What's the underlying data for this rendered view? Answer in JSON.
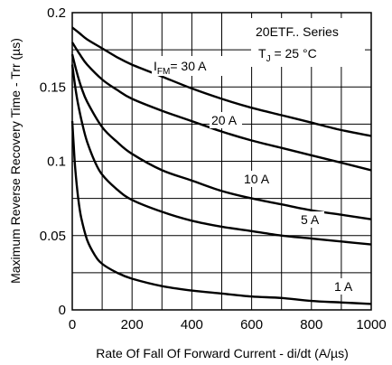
{
  "chart_data": {
    "type": "line",
    "title": "",
    "xlabel": "Rate Of Fall Of Forward Current - di/dt (A/µs)",
    "ylabel": "Maximum Reverse Recovery Time - Trr (µs)",
    "xlim": [
      0,
      1000
    ],
    "ylim": [
      0,
      0.2
    ],
    "x_ticks": [
      0,
      200,
      400,
      600,
      800,
      1000
    ],
    "x_tick_labels": [
      "0",
      "200",
      "400",
      "600",
      "800",
      "1000"
    ],
    "y_ticks": [
      0,
      0.05,
      0.1,
      0.15,
      0.2
    ],
    "y_tick_labels": [
      "0",
      "0.05",
      "0.1",
      "0.15",
      "0.2"
    ],
    "grid": true,
    "grid_x": [
      0,
      100,
      200,
      300,
      400,
      500,
      600,
      700,
      800,
      900,
      1000
    ],
    "grid_y": [
      0,
      0.025,
      0.05,
      0.075,
      0.1,
      0.125,
      0.15,
      0.175,
      0.2
    ],
    "legend_box": {
      "line1": "20ETF.. Series",
      "tj_main": "T",
      "tj_sub": "J",
      "tj_rest": " = 25 °C"
    },
    "series": [
      {
        "name": "30 A",
        "x": [
          0,
          25,
          50,
          100,
          150,
          200,
          300,
          400,
          500,
          600,
          700,
          800,
          900,
          1000
        ],
        "y": [
          0.19,
          0.186,
          0.182,
          0.176,
          0.17,
          0.165,
          0.157,
          0.149,
          0.142,
          0.136,
          0.131,
          0.126,
          0.121,
          0.117
        ]
      },
      {
        "name": "20 A",
        "x": [
          0,
          25,
          50,
          100,
          150,
          200,
          300,
          400,
          500,
          600,
          700,
          800,
          900,
          1000
        ],
        "y": [
          0.18,
          0.172,
          0.165,
          0.155,
          0.148,
          0.142,
          0.134,
          0.127,
          0.12,
          0.114,
          0.109,
          0.104,
          0.099,
          0.094
        ]
      },
      {
        "name": "10 A",
        "x": [
          0,
          15,
          30,
          50,
          100,
          150,
          200,
          300,
          400,
          500,
          600,
          700,
          800,
          900,
          1000
        ],
        "y": [
          0.172,
          0.16,
          0.15,
          0.14,
          0.123,
          0.113,
          0.105,
          0.094,
          0.087,
          0.08,
          0.075,
          0.071,
          0.067,
          0.064,
          0.061
        ]
      },
      {
        "name": "5 A",
        "x": [
          0,
          10,
          20,
          35,
          50,
          75,
          100,
          150,
          200,
          300,
          400,
          500,
          600,
          700,
          800,
          900,
          1000
        ],
        "y": [
          0.165,
          0.15,
          0.138,
          0.124,
          0.113,
          0.1,
          0.091,
          0.081,
          0.074,
          0.066,
          0.06,
          0.056,
          0.053,
          0.05,
          0.048,
          0.046,
          0.044
        ]
      },
      {
        "name": "1 A",
        "x": [
          0,
          5,
          10,
          20,
          30,
          50,
          75,
          100,
          150,
          200,
          300,
          400,
          500,
          600,
          700,
          800,
          900,
          1000
        ],
        "y": [
          0.127,
          0.11,
          0.095,
          0.075,
          0.062,
          0.047,
          0.037,
          0.031,
          0.025,
          0.021,
          0.016,
          0.013,
          0.011,
          0.009,
          0.008,
          0.006,
          0.005,
          0.004
        ]
      }
    ],
    "curve_labels": [
      {
        "series": "30 A",
        "main": "I",
        "sub": "FM",
        "rest": "= 30 A"
      },
      {
        "series": "20 A",
        "text": "20 A"
      },
      {
        "series": "10 A",
        "text": "10 A"
      },
      {
        "series": "5 A",
        "text": "5 A"
      },
      {
        "series": "1 A",
        "text": "1 A"
      }
    ]
  }
}
